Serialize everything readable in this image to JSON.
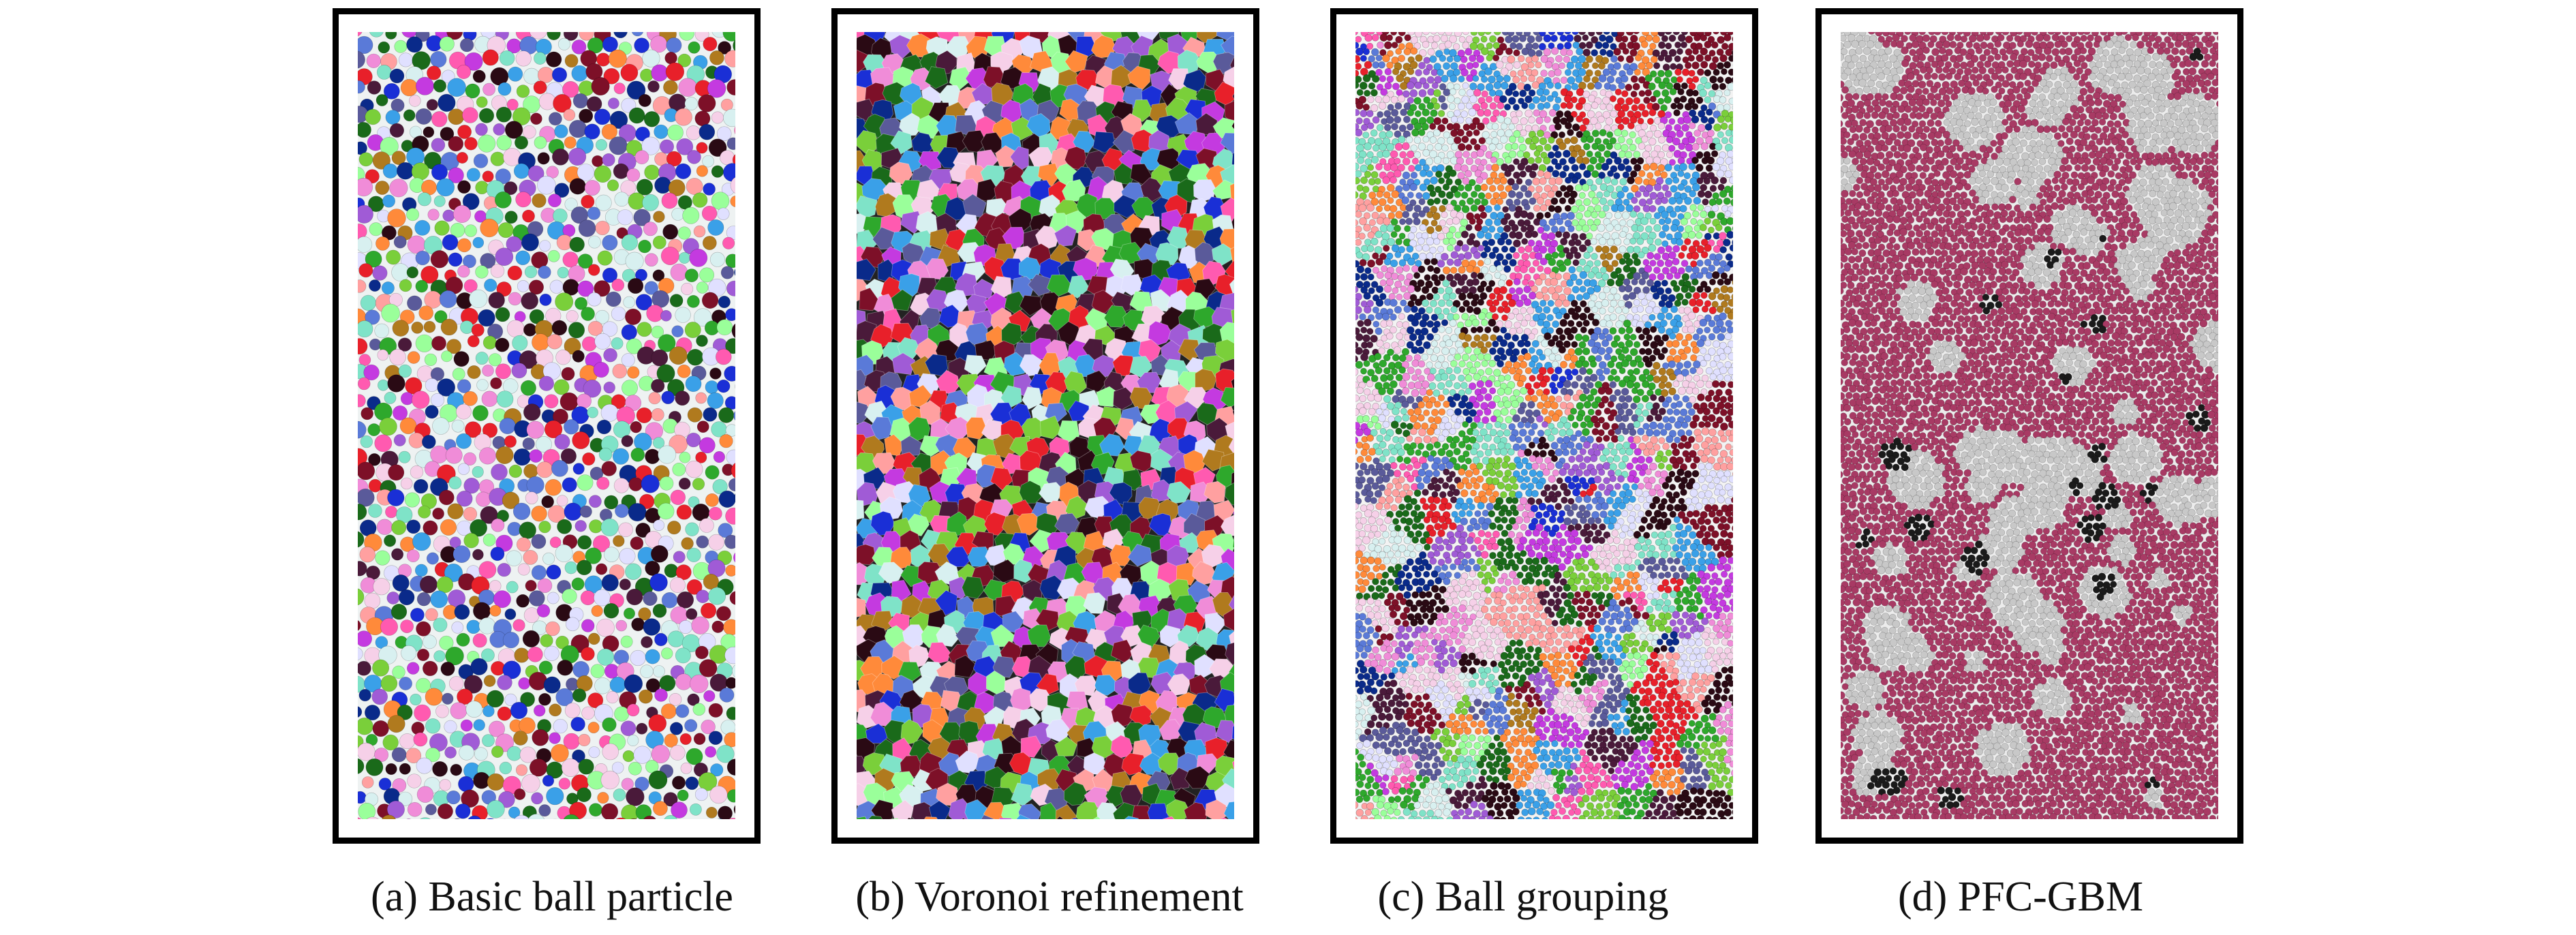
{
  "panels": [
    {
      "caption": "(a) Basic ball particle",
      "style": "balls-large"
    },
    {
      "caption": "(b) Voronoi refinement",
      "style": "voronoi"
    },
    {
      "caption": "(c) Ball grouping",
      "style": "balls-small"
    },
    {
      "caption": "(d) PFC-GBM",
      "style": "phases"
    }
  ],
  "palette": [
    "#1a2fd6",
    "#e8202a",
    "#2ea82c",
    "#7d1028",
    "#4a1a3a",
    "#f08cd8",
    "#ff8a3a",
    "#a05bd6",
    "#b07a1e",
    "#5a7ad8",
    "#3aa0e8",
    "#c43ae0",
    "#2a0a14",
    "#7fe3c8",
    "#d8f0f0",
    "#ff5ab0",
    "#7acf3a",
    "#1a6a1a",
    "#f6d0e8",
    "#0a2a8a",
    "#ffa0a0",
    "#9aff9a",
    "#5a5a9a",
    "#e0e0ff"
  ],
  "phase_colors": {
    "matrix": "#a83a64",
    "secondary": "#c8c8c8",
    "inclusion": "#1a1a1a"
  }
}
